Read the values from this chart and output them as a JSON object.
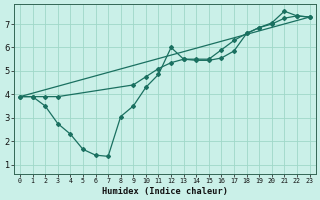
{
  "xlabel": "Humidex (Indice chaleur)",
  "bg_color": "#caf0e8",
  "grid_color": "#a0d8c8",
  "line_color": "#1a7060",
  "xlim": [
    -0.5,
    23.5
  ],
  "ylim": [
    0.6,
    7.85
  ],
  "xticks": [
    0,
    1,
    2,
    3,
    4,
    5,
    6,
    7,
    8,
    9,
    10,
    11,
    12,
    13,
    14,
    15,
    16,
    17,
    18,
    19,
    20,
    21,
    22,
    23
  ],
  "yticks": [
    1,
    2,
    3,
    4,
    5,
    6,
    7
  ],
  "line1_x": [
    0,
    1,
    2,
    3,
    4,
    5,
    6,
    7,
    8,
    9,
    10,
    11,
    12,
    13,
    14,
    15,
    16,
    17,
    18,
    19,
    20,
    21,
    22,
    23
  ],
  "line1_y": [
    3.9,
    3.9,
    3.5,
    2.75,
    2.3,
    1.65,
    1.4,
    1.35,
    3.05,
    3.5,
    4.3,
    4.85,
    6.0,
    5.5,
    5.45,
    5.45,
    5.55,
    5.85,
    6.6,
    6.85,
    7.05,
    7.55,
    7.35,
    7.3
  ],
  "line2_x": [
    0,
    1,
    2,
    3,
    9,
    10,
    11,
    12,
    13,
    14,
    15,
    16,
    17,
    18,
    19,
    20,
    21,
    22,
    23
  ],
  "line2_y": [
    3.9,
    3.9,
    3.9,
    3.9,
    4.4,
    4.75,
    5.1,
    5.35,
    5.5,
    5.5,
    5.5,
    5.9,
    6.3,
    6.6,
    6.85,
    7.0,
    7.25,
    7.35,
    7.3
  ],
  "line3_x": [
    0,
    23
  ],
  "line3_y": [
    3.9,
    7.3
  ]
}
